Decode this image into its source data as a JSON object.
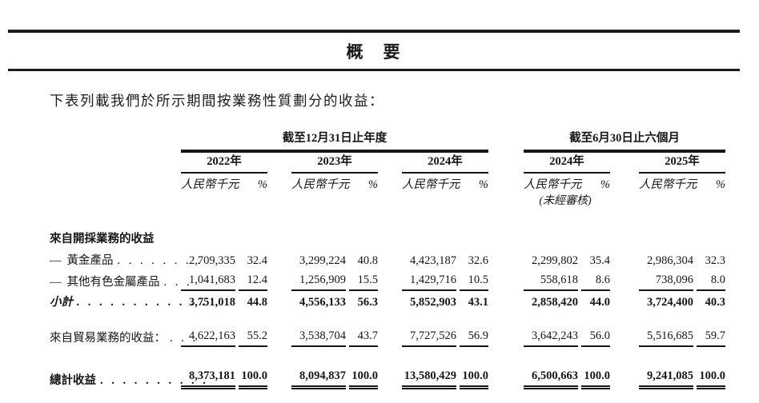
{
  "title": "概　要",
  "intro": "下表列載我們於所示期間按業務性質劃分的收益：",
  "table": {
    "group_annual": "截至12月31日止年度",
    "group_interim": "截至6月30日止六個月",
    "years": [
      "2022年",
      "2023年",
      "2024年",
      "2024年",
      "2025年"
    ],
    "unit": "人民幣千元",
    "pct": "%",
    "unaudited": "(未經審核)",
    "rows": {
      "mining_header": {
        "label": "來自開採業務的收益"
      },
      "gold": {
        "dash": "—",
        "label": "黃金產品",
        "dots": ". . . . . . . .",
        "values": [
          "2,709,335",
          "32.4",
          "3,299,224",
          "40.8",
          "4,423,187",
          "32.6",
          "2,299,802",
          "35.4",
          "2,986,304",
          "32.3"
        ]
      },
      "other_metals": {
        "dash": "—",
        "label": "其他有色金屬產品",
        "dots": ". . .",
        "values": [
          "1,041,683",
          "12.4",
          "1,256,909",
          "15.5",
          "1,429,716",
          "10.5",
          "558,618",
          "8.6",
          "738,096",
          "8.0"
        ]
      },
      "subtotal": {
        "label": "小計",
        "dots": ". . . . . . . . . . . .",
        "values": [
          "3,751,018",
          "44.8",
          "4,556,133",
          "56.3",
          "5,852,903",
          "43.1",
          "2,858,420",
          "44.0",
          "3,724,400",
          "40.3"
        ]
      },
      "trading": {
        "label": "來自貿易業務的收益：",
        "dots": ". . .",
        "values": [
          "4,622,163",
          "55.2",
          "3,538,704",
          "43.7",
          "7,727,526",
          "56.9",
          "3,642,243",
          "56.0",
          "5,516,685",
          "59.7"
        ]
      },
      "total": {
        "label": "總計收益",
        "dots": ". . . . . . . . . .",
        "values": [
          "8,373,181",
          "100.0",
          "8,094,837",
          "100.0",
          "13,580,429",
          "100.0",
          "6,500,663",
          "100.0",
          "9,241,085",
          "100.0"
        ]
      }
    }
  }
}
